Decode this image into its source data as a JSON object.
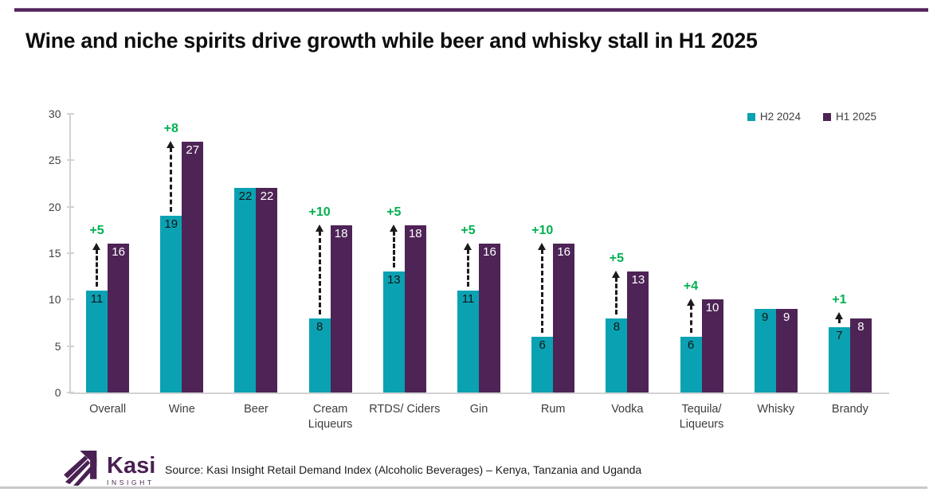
{
  "header": {
    "title": "Wine and niche spirits drive growth while beer and whisky stall in H1 2025"
  },
  "legend": [
    {
      "label": "H2 2024",
      "color": "#0aa2b2"
    },
    {
      "label": "H1 2025",
      "color": "#4e2456"
    }
  ],
  "chart_data": {
    "type": "bar",
    "title": "Wine and niche spirits drive growth while beer and whisky stall in H1 2025",
    "categories": [
      "Overall",
      "Wine",
      "Beer",
      "Cream\nLiqueurs",
      "RTDS/ Ciders",
      "Gin",
      "Rum",
      "Vodka",
      "Tequila/\nLiqueurs",
      "Whisky",
      "Brandy"
    ],
    "series": [
      {
        "name": "H2 2024",
        "color": "#0aa2b2",
        "values": [
          11,
          19,
          22,
          8,
          13,
          11,
          6,
          8,
          6,
          9,
          7
        ]
      },
      {
        "name": "H1 2025",
        "color": "#4e2456",
        "values": [
          16,
          27,
          22,
          18,
          18,
          16,
          16,
          13,
          10,
          9,
          8
        ]
      }
    ],
    "delta_labels": [
      "+5",
      "+8",
      null,
      "+10",
      "+5",
      "+5",
      "+10",
      "+5",
      "+4",
      null,
      "+1"
    ],
    "delta_color": "#00b050",
    "value_label_color_series1": "#151515",
    "value_label_color_series2": "#ffffff",
    "xlabel": "",
    "ylabel": "",
    "ylim": [
      0,
      30
    ],
    "yticks": [
      0,
      5,
      10,
      15,
      20,
      25,
      30
    ],
    "grid": false,
    "legend_position": "top-right"
  },
  "footer": {
    "brand": "Kasi",
    "brand_sub": "INSIGHT",
    "brand_color": "#4a2153",
    "source": "Source: Kasi Insight Retail  Demand Index (Alcoholic Beverages)  – Kenya, Tanzania and Uganda"
  }
}
